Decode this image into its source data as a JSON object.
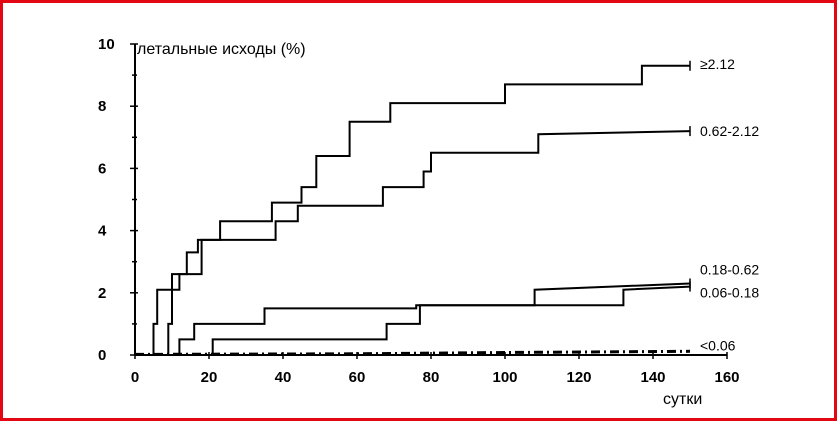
{
  "chart_data": {
    "type": "line",
    "step": true,
    "ylabel": "летальные исходы (%)",
    "xlabel": "сутки",
    "xlim": [
      0,
      160
    ],
    "ylim": [
      0,
      10
    ],
    "xticks": [
      0,
      20,
      40,
      60,
      80,
      100,
      120,
      140,
      160
    ],
    "yticks": [
      0,
      2,
      4,
      6,
      8,
      10
    ],
    "grid": false,
    "legend": "series labels at right end of each line",
    "series": [
      {
        "name": "≥2.12",
        "style": "solid",
        "points": [
          [
            0,
            0
          ],
          [
            5,
            0
          ],
          [
            5,
            1.0
          ],
          [
            6,
            1.0
          ],
          [
            6,
            2.1
          ],
          [
            10,
            2.1
          ],
          [
            10,
            2.6
          ],
          [
            14,
            2.6
          ],
          [
            14,
            3.3
          ],
          [
            17,
            3.3
          ],
          [
            17,
            3.7
          ],
          [
            23,
            3.7
          ],
          [
            23,
            4.3
          ],
          [
            37,
            4.3
          ],
          [
            37,
            4.9
          ],
          [
            45,
            4.9
          ],
          [
            45,
            5.4
          ],
          [
            49,
            5.4
          ],
          [
            49,
            6.4
          ],
          [
            58,
            6.4
          ],
          [
            58,
            7.5
          ],
          [
            69,
            7.5
          ],
          [
            69,
            8.1
          ],
          [
            100,
            8.1
          ],
          [
            100,
            8.7
          ],
          [
            137,
            8.7
          ],
          [
            137,
            9.3
          ],
          [
            150,
            9.3
          ]
        ]
      },
      {
        "name": "0.62-2.12",
        "style": "solid",
        "points": [
          [
            0,
            0
          ],
          [
            9,
            0
          ],
          [
            9,
            1.0
          ],
          [
            10,
            1.0
          ],
          [
            10,
            2.1
          ],
          [
            12,
            2.1
          ],
          [
            12,
            2.6
          ],
          [
            18,
            2.6
          ],
          [
            18,
            3.7
          ],
          [
            38,
            3.7
          ],
          [
            38,
            4.3
          ],
          [
            44,
            4.3
          ],
          [
            44,
            4.8
          ],
          [
            67,
            4.8
          ],
          [
            67,
            5.4
          ],
          [
            78,
            5.4
          ],
          [
            78,
            5.9
          ],
          [
            80,
            5.9
          ],
          [
            80,
            6.5
          ],
          [
            109,
            6.5
          ],
          [
            109,
            7.1
          ],
          [
            150,
            7.2
          ]
        ]
      },
      {
        "name": "0.18-0.62",
        "style": "solid",
        "points": [
          [
            0,
            0
          ],
          [
            12,
            0
          ],
          [
            12,
            0.5
          ],
          [
            16,
            0.5
          ],
          [
            16,
            1.0
          ],
          [
            35,
            1.0
          ],
          [
            35,
            1.5
          ],
          [
            76,
            1.5
          ],
          [
            76,
            1.6
          ],
          [
            108,
            1.6
          ],
          [
            108,
            2.1
          ],
          [
            150,
            2.3
          ]
        ]
      },
      {
        "name": "0.06-0.18",
        "style": "solid",
        "points": [
          [
            0,
            0
          ],
          [
            21,
            0
          ],
          [
            21,
            0.5
          ],
          [
            68,
            0.5
          ],
          [
            68,
            1.0
          ],
          [
            77,
            1.0
          ],
          [
            77,
            1.6
          ],
          [
            132,
            1.6
          ],
          [
            132,
            2.1
          ],
          [
            150,
            2.2
          ]
        ]
      },
      {
        "name": "<0.06",
        "style": "dashdot",
        "points": [
          [
            0,
            0.02
          ],
          [
            60,
            0.04
          ],
          [
            100,
            0.08
          ],
          [
            150,
            0.12
          ]
        ]
      }
    ]
  }
}
